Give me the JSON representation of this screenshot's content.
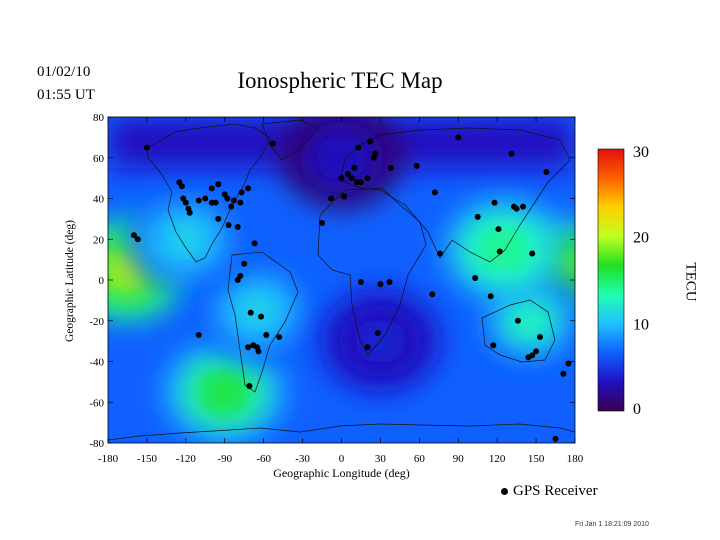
{
  "header": {
    "date": "01/02/10",
    "time": "01:55 UT",
    "title": "Ionospheric TEC Map"
  },
  "chart_data": {
    "type": "heatmap",
    "title": "Ionospheric TEC Map",
    "xlabel": "Geographic Longitude (deg)",
    "ylabel": "Geographic Latitude (deg)",
    "xlim": [
      -180,
      180
    ],
    "ylim": [
      -80,
      80
    ],
    "xticks": [
      -180,
      -150,
      -120,
      -90,
      -60,
      -30,
      0,
      30,
      60,
      90,
      120,
      150,
      180
    ],
    "yticks": [
      -80,
      -60,
      -40,
      -20,
      0,
      20,
      40,
      60,
      80
    ],
    "colorbar": {
      "label": "TECU",
      "range": [
        0,
        30
      ],
      "ticks": [
        0,
        10,
        20,
        30
      ],
      "colors": [
        "#3a0050",
        "#2010c0",
        "#1060ff",
        "#20c0ff",
        "#20ffb0",
        "#20e020",
        "#c0ff20",
        "#ffd000",
        "#ff6000",
        "#e01010"
      ]
    },
    "enhancements": [
      {
        "lon": -165,
        "lat": 5,
        "tec": 22
      },
      {
        "lon": 175,
        "lat": 5,
        "tec": 20
      },
      {
        "lon": -90,
        "lat": -55,
        "tec": 17
      },
      {
        "lon": -65,
        "lat": -15,
        "tec": 12
      },
      {
        "lon": 145,
        "lat": -20,
        "tec": 13
      },
      {
        "lon": 125,
        "lat": 15,
        "tec": 16
      },
      {
        "lon": -120,
        "lat": 20,
        "tec": 12
      },
      {
        "lon": 0,
        "lat": 60,
        "tec": 3
      },
      {
        "lon": 30,
        "lat": -30,
        "tec": 5
      }
    ],
    "receivers": [
      [
        -150,
        65
      ],
      [
        -160,
        22
      ],
      [
        -157,
        20
      ],
      [
        -110,
        -27
      ],
      [
        -125,
        48
      ],
      [
        -123,
        46
      ],
      [
        -122,
        40
      ],
      [
        -120,
        38
      ],
      [
        -118,
        35
      ],
      [
        -117,
        33
      ],
      [
        -110,
        39
      ],
      [
        -105,
        40
      ],
      [
        -100,
        45
      ],
      [
        -97,
        38
      ],
      [
        -95,
        30
      ],
      [
        -90,
        42
      ],
      [
        -85,
        36
      ],
      [
        -80,
        26
      ],
      [
        -78,
        38
      ],
      [
        -77,
        43
      ],
      [
        -72,
        45
      ],
      [
        -95,
        47
      ],
      [
        -100,
        38
      ],
      [
        -88,
        40
      ],
      [
        -83,
        39
      ],
      [
        -87,
        27
      ],
      [
        -75,
        8
      ],
      [
        -78,
        2
      ],
      [
        -80,
        0
      ],
      [
        -67,
        18
      ],
      [
        -62,
        -18
      ],
      [
        -70,
        -16
      ],
      [
        -72,
        -33
      ],
      [
        -68,
        -32
      ],
      [
        -65,
        -33
      ],
      [
        -64,
        -35
      ],
      [
        -58,
        -27
      ],
      [
        -48,
        -28
      ],
      [
        -71,
        -52
      ],
      [
        -53,
        67
      ],
      [
        -15,
        28
      ],
      [
        -8,
        40
      ],
      [
        0,
        50
      ],
      [
        5,
        52
      ],
      [
        8,
        50
      ],
      [
        12,
        48
      ],
      [
        2,
        41
      ],
      [
        10,
        55
      ],
      [
        22,
        68
      ],
      [
        25,
        60
      ],
      [
        38,
        55
      ],
      [
        58,
        56
      ],
      [
        72,
        43
      ],
      [
        76,
        13
      ],
      [
        90,
        70
      ],
      [
        15,
        48
      ],
      [
        20,
        50
      ],
      [
        13,
        65
      ],
      [
        26,
        62
      ],
      [
        15,
        -1
      ],
      [
        30,
        -2
      ],
      [
        37,
        -1
      ],
      [
        28,
        -26
      ],
      [
        20,
        -33
      ],
      [
        70,
        -7
      ],
      [
        105,
        31
      ],
      [
        118,
        38
      ],
      [
        121,
        25
      ],
      [
        122,
        14
      ],
      [
        103,
        1
      ],
      [
        115,
        -8
      ],
      [
        117,
        -32
      ],
      [
        136,
        -20
      ],
      [
        133,
        36
      ],
      [
        135,
        35
      ],
      [
        140,
        36
      ],
      [
        147,
        13
      ],
      [
        150,
        -35
      ],
      [
        147,
        -37
      ],
      [
        153,
        -28
      ],
      [
        144,
        -38
      ],
      [
        175,
        -41
      ],
      [
        131,
        62
      ],
      [
        158,
        53
      ],
      [
        165,
        -78
      ],
      [
        171,
        -46
      ]
    ]
  },
  "legend": {
    "label": "GPS Receiver"
  },
  "footer": {
    "stamp": "Fri Jan  1 18:21:09 2010"
  }
}
